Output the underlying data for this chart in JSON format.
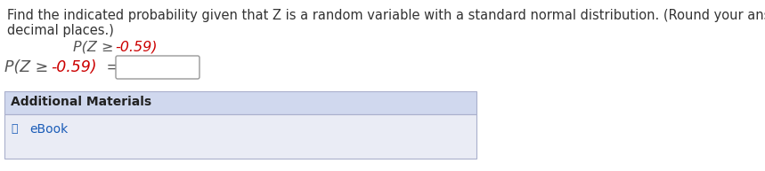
{
  "line1": "Find the indicated probability given that Z is a random variable with a standard normal distribution. (Round your answer to four",
  "line2": "decimal places.)",
  "formula_centered_black": "P(Z ≥ ",
  "formula_centered_red": "-0.59)",
  "formula_left_black": "P(Z ≥ ",
  "formula_left_red": "-0.59)",
  "equals": " = ",
  "additional_header": "Additional Materials",
  "ebook_label": "eBook",
  "bg_color": "#ffffff",
  "panel_header_color": "#d0d8ee",
  "panel_body_color": "#eaecf5",
  "panel_border_color": "#aab0cc",
  "text_color": "#333333",
  "formula_gray": "#555555",
  "formula_red": "#cc0000",
  "ebook_color": "#1a5cb8",
  "font_size_body": 10.5,
  "font_size_formula_center": 11.5,
  "font_size_formula_left": 12.5,
  "font_size_header": 10,
  "font_size_ebook": 10
}
